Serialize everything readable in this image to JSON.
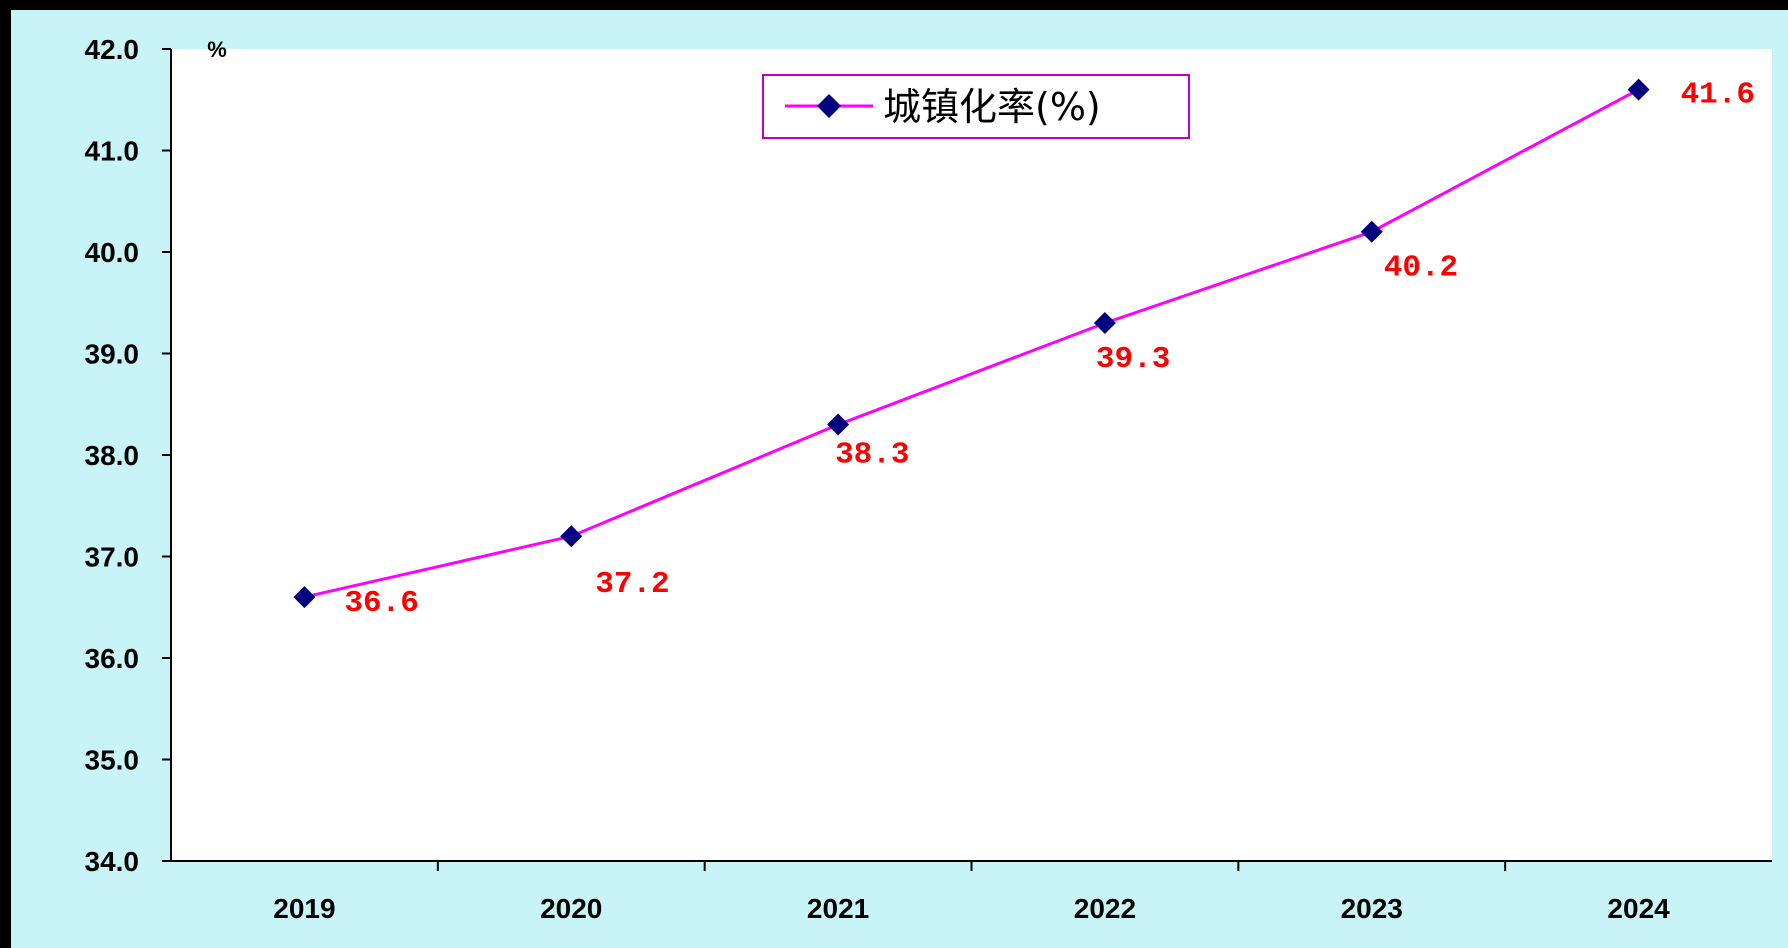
{
  "chart_data": {
    "type": "line",
    "categories": [
      "2019",
      "2020",
      "2021",
      "2022",
      "2023",
      "2024"
    ],
    "series": [
      {
        "name": "城镇化率(%)",
        "values": [
          36.6,
          37.2,
          38.3,
          39.3,
          40.2,
          41.6
        ]
      }
    ],
    "data_labels": [
      "36.6",
      "37.2",
      "38.3",
      "39.3",
      "40.2",
      "41.6"
    ],
    "y_unit": "%",
    "ylim": [
      34.0,
      42.0
    ],
    "y_ticks": [
      "34.0",
      "35.0",
      "36.0",
      "37.0",
      "38.0",
      "39.0",
      "40.0",
      "41.0",
      "42.0"
    ],
    "grid": false,
    "legend_position": "top-center",
    "colors": {
      "line": "#ff00ff",
      "marker": "#000080",
      "data_label": "#ff0000",
      "plot_background": "#ffffff",
      "chart_background": "#c8f4f8",
      "frame": "#000000",
      "legend_border": "#c000c0"
    }
  }
}
